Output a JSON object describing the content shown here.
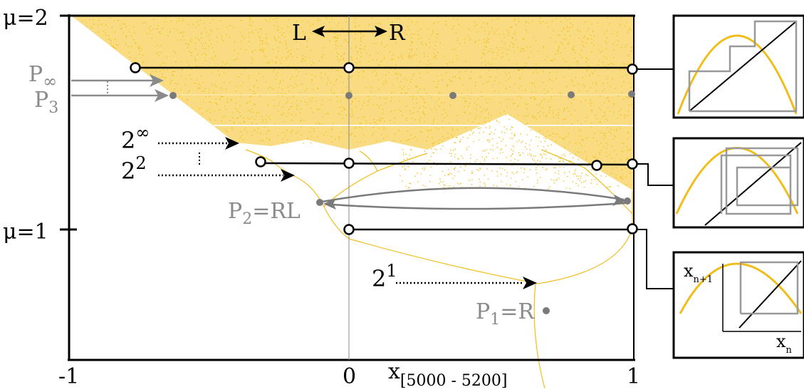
{
  "colors": {
    "attractor": "#f2c01e",
    "gray": "#8a8a8a",
    "black": "#000000"
  },
  "axes": {
    "mu_top": "μ=2",
    "mu_one": "μ=1",
    "x_min": "-1",
    "x_zero": "0",
    "x_max": "1",
    "x_label": "x",
    "x_subscript": "[5000 - 5200]",
    "lr_left": "L",
    "lr_right": "R"
  },
  "labels": {
    "p_inf": "P",
    "p_inf_sub": "∞",
    "p3": "P",
    "p3_sub": "3",
    "two_inf": "2",
    "two_inf_sup": "∞",
    "two_sq": "2",
    "two_sq_sup": "2",
    "p2": "P",
    "p2_sub": "2",
    "p2_suffix": "=RL",
    "two_one": "2",
    "two_one_sup": "1",
    "p1": "P",
    "p1_sub": "1",
    "p1_suffix": "=R"
  },
  "insets": {
    "xn1": "x",
    "xn1_sub": "n+1",
    "xn": "x",
    "xn_sub": "n"
  }
}
